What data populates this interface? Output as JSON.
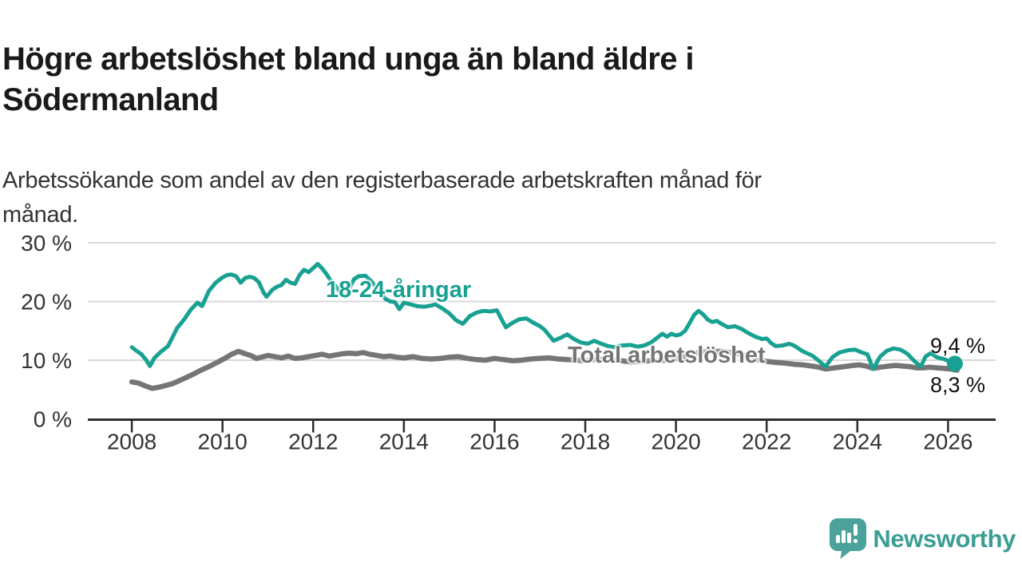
{
  "title": {
    "lines": [
      "Högre arbetslöshet bland unga än bland äldre i",
      "Södermanland"
    ]
  },
  "subtitle": {
    "lines": [
      "Arbetssökande som andel av den registerbaserade arbetskraften månad för",
      "månad."
    ]
  },
  "branding": {
    "logo_text": "Newsworthy",
    "logo_icon": "newsworthy-speech-bubble-bar-chart-icon",
    "icon_color": "#4aa29a",
    "text_color": "#3b9e95"
  },
  "chart_data": {
    "type": "line",
    "title": "Högre arbetslöshet bland unga än bland äldre i Södermanland",
    "subtitle": "Arbetssökande som andel av den registerbaserade arbetskraften månad för månad.",
    "grid": "horizontal",
    "legend_position": "inline-labels",
    "x_range": [
      2007.03,
      2027.05
    ],
    "y_range": [
      0,
      30
    ],
    "style": {
      "grid_color": "#d8d8d8",
      "axis_color": "#2d2d2d",
      "tick_text_color": "#333333"
    },
    "x_ticks": [
      {
        "value": 2008,
        "label": "2008"
      },
      {
        "value": 2010,
        "label": "2010"
      },
      {
        "value": 2012,
        "label": "2012"
      },
      {
        "value": 2014,
        "label": "2014"
      },
      {
        "value": 2016,
        "label": "2016"
      },
      {
        "value": 2018,
        "label": "2018"
      },
      {
        "value": 2020,
        "label": "2020"
      },
      {
        "value": 2022,
        "label": "2022"
      },
      {
        "value": 2024,
        "label": "2024"
      },
      {
        "value": 2026,
        "label": "2026"
      }
    ],
    "y_ticks": [
      {
        "value": 0,
        "label": "0 %"
      },
      {
        "value": 10,
        "label": "10 %"
      },
      {
        "value": 20,
        "label": "20 %"
      },
      {
        "value": 30,
        "label": "30 %"
      }
    ],
    "series": [
      {
        "name": "Total arbetslöshet",
        "color": "#757575",
        "width": 6.5,
        "end_dot": false,
        "end_label": "8,3 %",
        "end_value": 8.3,
        "points": [
          [
            2008.0,
            6.3
          ],
          [
            2008.15,
            6.1
          ],
          [
            2008.3,
            5.6
          ],
          [
            2008.45,
            5.2
          ],
          [
            2008.6,
            5.4
          ],
          [
            2008.75,
            5.7
          ],
          [
            2008.9,
            6.0
          ],
          [
            2009.1,
            6.7
          ],
          [
            2009.3,
            7.4
          ],
          [
            2009.5,
            8.2
          ],
          [
            2009.7,
            8.9
          ],
          [
            2009.9,
            9.7
          ],
          [
            2010.05,
            10.3
          ],
          [
            2010.2,
            11.0
          ],
          [
            2010.35,
            11.5
          ],
          [
            2010.5,
            11.1
          ],
          [
            2010.62,
            10.8
          ],
          [
            2010.75,
            10.3
          ],
          [
            2010.9,
            10.6
          ],
          [
            2011.0,
            10.8
          ],
          [
            2011.15,
            10.6
          ],
          [
            2011.3,
            10.4
          ],
          [
            2011.45,
            10.7
          ],
          [
            2011.6,
            10.3
          ],
          [
            2011.75,
            10.4
          ],
          [
            2011.9,
            10.6
          ],
          [
            2012.05,
            10.8
          ],
          [
            2012.2,
            11.0
          ],
          [
            2012.35,
            10.7
          ],
          [
            2012.5,
            10.9
          ],
          [
            2012.65,
            11.1
          ],
          [
            2012.8,
            11.2
          ],
          [
            2012.95,
            11.1
          ],
          [
            2013.1,
            11.3
          ],
          [
            2013.25,
            11.0
          ],
          [
            2013.4,
            10.8
          ],
          [
            2013.55,
            10.6
          ],
          [
            2013.7,
            10.7
          ],
          [
            2013.85,
            10.5
          ],
          [
            2014.0,
            10.4
          ],
          [
            2014.2,
            10.6
          ],
          [
            2014.4,
            10.3
          ],
          [
            2014.6,
            10.2
          ],
          [
            2014.8,
            10.3
          ],
          [
            2015.0,
            10.5
          ],
          [
            2015.2,
            10.6
          ],
          [
            2015.4,
            10.3
          ],
          [
            2015.6,
            10.1
          ],
          [
            2015.8,
            10.0
          ],
          [
            2016.0,
            10.3
          ],
          [
            2016.2,
            10.1
          ],
          [
            2016.4,
            9.9
          ],
          [
            2016.6,
            10.0
          ],
          [
            2016.8,
            10.2
          ],
          [
            2017.0,
            10.3
          ],
          [
            2017.2,
            10.4
          ],
          [
            2017.4,
            10.2
          ],
          [
            2017.6,
            10.1
          ],
          [
            2017.8,
            10.0
          ],
          [
            2018.0,
            9.9
          ],
          [
            2018.2,
            10.1
          ],
          [
            2018.4,
            10.2
          ],
          [
            2018.6,
            10.0
          ],
          [
            2018.8,
            9.9
          ],
          [
            2019.0,
            9.7
          ],
          [
            2019.2,
            9.8
          ],
          [
            2019.4,
            9.9
          ],
          [
            2019.6,
            9.9
          ],
          [
            2019.8,
            10.0
          ],
          [
            2020.0,
            10.2
          ],
          [
            2020.2,
            10.7
          ],
          [
            2020.4,
            11.2
          ],
          [
            2020.6,
            11.4
          ],
          [
            2020.8,
            11.5
          ],
          [
            2021.0,
            11.5
          ],
          [
            2021.2,
            11.3
          ],
          [
            2021.4,
            11.0
          ],
          [
            2021.6,
            10.5
          ],
          [
            2021.8,
            10.1
          ],
          [
            2022.0,
            9.8
          ],
          [
            2022.2,
            9.6
          ],
          [
            2022.4,
            9.5
          ],
          [
            2022.6,
            9.3
          ],
          [
            2022.8,
            9.2
          ],
          [
            2023.0,
            9.0
          ],
          [
            2023.15,
            8.8
          ],
          [
            2023.3,
            8.5
          ],
          [
            2023.5,
            8.7
          ],
          [
            2023.7,
            8.9
          ],
          [
            2023.9,
            9.1
          ],
          [
            2024.05,
            9.2
          ],
          [
            2024.2,
            9.0
          ],
          [
            2024.35,
            8.6
          ],
          [
            2024.5,
            8.8
          ],
          [
            2024.7,
            9.0
          ],
          [
            2024.85,
            9.1
          ],
          [
            2025.0,
            9.0
          ],
          [
            2025.15,
            8.9
          ],
          [
            2025.3,
            8.7
          ],
          [
            2025.45,
            8.7
          ],
          [
            2025.6,
            8.8
          ],
          [
            2025.75,
            8.7
          ],
          [
            2025.9,
            8.6
          ],
          [
            2026.05,
            8.5
          ],
          [
            2026.2,
            8.3
          ]
        ]
      },
      {
        "name": "18-24-åringar",
        "color": "#18a192",
        "width": 5,
        "end_dot": true,
        "end_label": "9,4 %",
        "end_value": 9.4,
        "points": [
          [
            2008.0,
            12.2
          ],
          [
            2008.1,
            11.6
          ],
          [
            2008.2,
            11.1
          ],
          [
            2008.3,
            10.2
          ],
          [
            2008.4,
            9.0
          ],
          [
            2008.5,
            10.4
          ],
          [
            2008.65,
            11.5
          ],
          [
            2008.8,
            12.4
          ],
          [
            2009.0,
            15.5
          ],
          [
            2009.15,
            16.9
          ],
          [
            2009.3,
            18.6
          ],
          [
            2009.45,
            19.8
          ],
          [
            2009.55,
            19.2
          ],
          [
            2009.7,
            21.8
          ],
          [
            2009.85,
            23.2
          ],
          [
            2010.0,
            24.1
          ],
          [
            2010.1,
            24.5
          ],
          [
            2010.2,
            24.6
          ],
          [
            2010.3,
            24.3
          ],
          [
            2010.4,
            23.2
          ],
          [
            2010.5,
            24.0
          ],
          [
            2010.6,
            24.2
          ],
          [
            2010.7,
            24.0
          ],
          [
            2010.8,
            23.3
          ],
          [
            2010.9,
            21.6
          ],
          [
            2010.97,
            20.8
          ],
          [
            2011.1,
            22.0
          ],
          [
            2011.2,
            22.5
          ],
          [
            2011.3,
            22.8
          ],
          [
            2011.4,
            23.7
          ],
          [
            2011.5,
            23.2
          ],
          [
            2011.6,
            23.0
          ],
          [
            2011.7,
            24.5
          ],
          [
            2011.8,
            25.4
          ],
          [
            2011.9,
            25.0
          ],
          [
            2012.0,
            25.7
          ],
          [
            2012.1,
            26.4
          ],
          [
            2012.2,
            25.6
          ],
          [
            2012.3,
            24.6
          ],
          [
            2012.4,
            23.4
          ],
          [
            2012.5,
            22.6
          ],
          [
            2012.6,
            21.5
          ],
          [
            2012.7,
            20.8
          ],
          [
            2012.8,
            22.3
          ],
          [
            2012.9,
            23.8
          ],
          [
            2013.0,
            24.3
          ],
          [
            2013.15,
            24.4
          ],
          [
            2013.3,
            23.3
          ],
          [
            2013.45,
            21.7
          ],
          [
            2013.6,
            20.4
          ],
          [
            2013.7,
            20.0
          ],
          [
            2013.8,
            19.9
          ],
          [
            2013.9,
            18.7
          ],
          [
            2014.0,
            19.8
          ],
          [
            2014.15,
            19.5
          ],
          [
            2014.3,
            19.2
          ],
          [
            2014.45,
            19.1
          ],
          [
            2014.6,
            19.3
          ],
          [
            2014.7,
            19.5
          ],
          [
            2014.85,
            18.8
          ],
          [
            2015.0,
            18.0
          ],
          [
            2015.15,
            16.8
          ],
          [
            2015.3,
            16.2
          ],
          [
            2015.45,
            17.5
          ],
          [
            2015.6,
            18.1
          ],
          [
            2015.75,
            18.4
          ],
          [
            2015.9,
            18.3
          ],
          [
            2016.05,
            18.5
          ],
          [
            2016.15,
            17.0
          ],
          [
            2016.25,
            15.6
          ],
          [
            2016.4,
            16.4
          ],
          [
            2016.55,
            17.0
          ],
          [
            2016.7,
            17.1
          ],
          [
            2016.85,
            16.4
          ],
          [
            2017.0,
            15.8
          ],
          [
            2017.1,
            15.2
          ],
          [
            2017.3,
            13.3
          ],
          [
            2017.45,
            13.8
          ],
          [
            2017.6,
            14.4
          ],
          [
            2017.75,
            13.6
          ],
          [
            2017.9,
            13.0
          ],
          [
            2018.05,
            12.8
          ],
          [
            2018.2,
            13.3
          ],
          [
            2018.35,
            12.8
          ],
          [
            2018.5,
            12.4
          ],
          [
            2018.65,
            12.2
          ],
          [
            2018.8,
            12.5
          ],
          [
            2019.0,
            12.6
          ],
          [
            2019.15,
            12.3
          ],
          [
            2019.3,
            12.5
          ],
          [
            2019.45,
            13.0
          ],
          [
            2019.6,
            13.9
          ],
          [
            2019.7,
            14.5
          ],
          [
            2019.8,
            14.0
          ],
          [
            2019.9,
            14.5
          ],
          [
            2020.0,
            14.2
          ],
          [
            2020.1,
            14.4
          ],
          [
            2020.2,
            15.0
          ],
          [
            2020.3,
            16.3
          ],
          [
            2020.4,
            17.7
          ],
          [
            2020.5,
            18.4
          ],
          [
            2020.6,
            17.8
          ],
          [
            2020.7,
            16.9
          ],
          [
            2020.8,
            16.5
          ],
          [
            2020.9,
            16.7
          ],
          [
            2021.0,
            16.2
          ],
          [
            2021.15,
            15.6
          ],
          [
            2021.3,
            15.8
          ],
          [
            2021.45,
            15.3
          ],
          [
            2021.6,
            14.6
          ],
          [
            2021.75,
            14.0
          ],
          [
            2021.9,
            13.6
          ],
          [
            2022.0,
            13.7
          ],
          [
            2022.1,
            12.9
          ],
          [
            2022.2,
            12.4
          ],
          [
            2022.35,
            12.5
          ],
          [
            2022.5,
            12.8
          ],
          [
            2022.6,
            12.5
          ],
          [
            2022.8,
            11.5
          ],
          [
            2023.0,
            10.8
          ],
          [
            2023.15,
            9.9
          ],
          [
            2023.3,
            8.9
          ],
          [
            2023.45,
            10.5
          ],
          [
            2023.6,
            11.3
          ],
          [
            2023.8,
            11.7
          ],
          [
            2023.95,
            11.8
          ],
          [
            2024.1,
            11.3
          ],
          [
            2024.22,
            11.0
          ],
          [
            2024.35,
            8.5
          ],
          [
            2024.5,
            10.6
          ],
          [
            2024.65,
            11.6
          ],
          [
            2024.8,
            12.0
          ],
          [
            2024.95,
            11.8
          ],
          [
            2025.1,
            11.1
          ],
          [
            2025.25,
            9.9
          ],
          [
            2025.4,
            8.9
          ],
          [
            2025.5,
            10.6
          ],
          [
            2025.62,
            11.2
          ],
          [
            2025.75,
            10.5
          ],
          [
            2025.9,
            10.2
          ],
          [
            2026.0,
            9.9
          ],
          [
            2026.15,
            9.4
          ]
        ]
      }
    ]
  }
}
